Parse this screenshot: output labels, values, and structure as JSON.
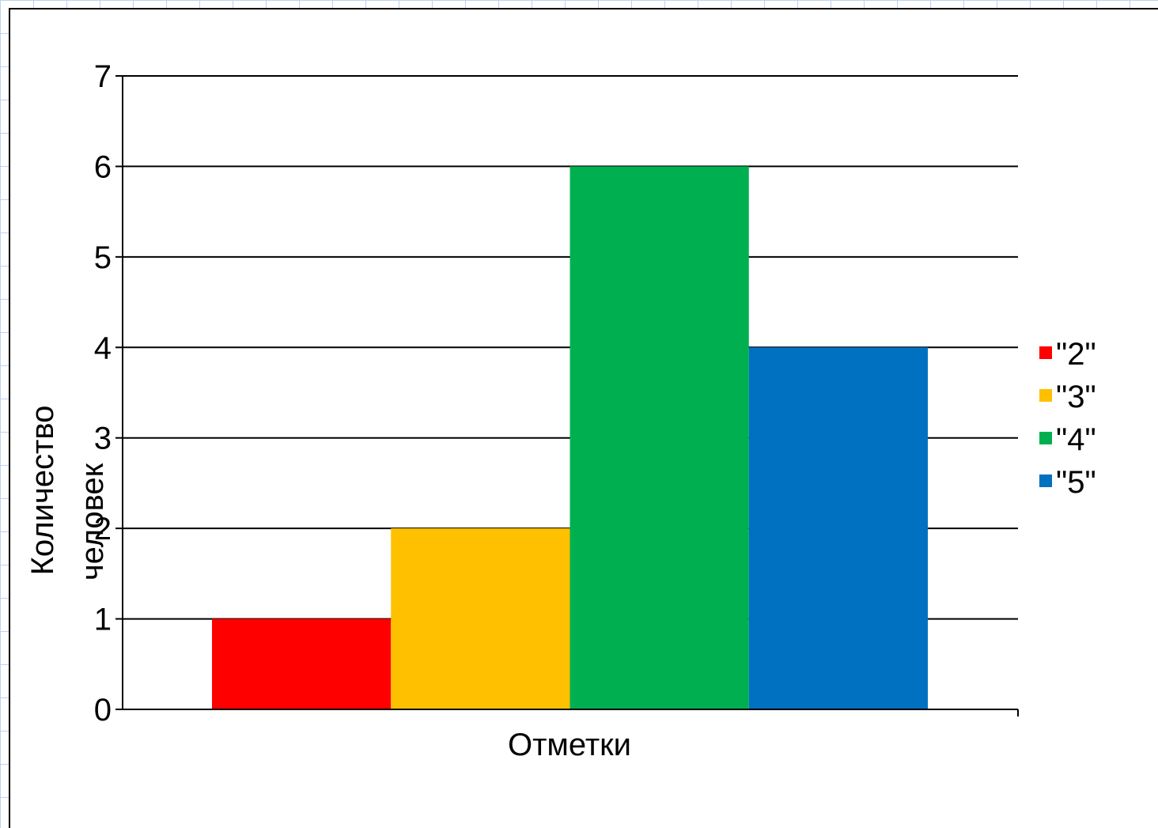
{
  "chart_data": {
    "type": "bar",
    "title": "",
    "xlabel": "Отметки",
    "ylabel": "Количество человек",
    "ylim": [
      0,
      7
    ],
    "yticks": [
      0,
      1,
      2,
      3,
      4,
      5,
      6,
      7
    ],
    "grid": true,
    "legend_position": "right",
    "series": [
      {
        "name": "\"2\"",
        "value": 1,
        "color": "#ff0000"
      },
      {
        "name": "\"3\"",
        "value": 2,
        "color": "#ffc000"
      },
      {
        "name": "\"4\"",
        "value": 6,
        "color": "#00b050"
      },
      {
        "name": "\"5\"",
        "value": 4,
        "color": "#0070c0"
      }
    ]
  },
  "axis_titles": {
    "x": "Отметки",
    "y_line1": "Количество",
    "y_line2": "человек"
  }
}
